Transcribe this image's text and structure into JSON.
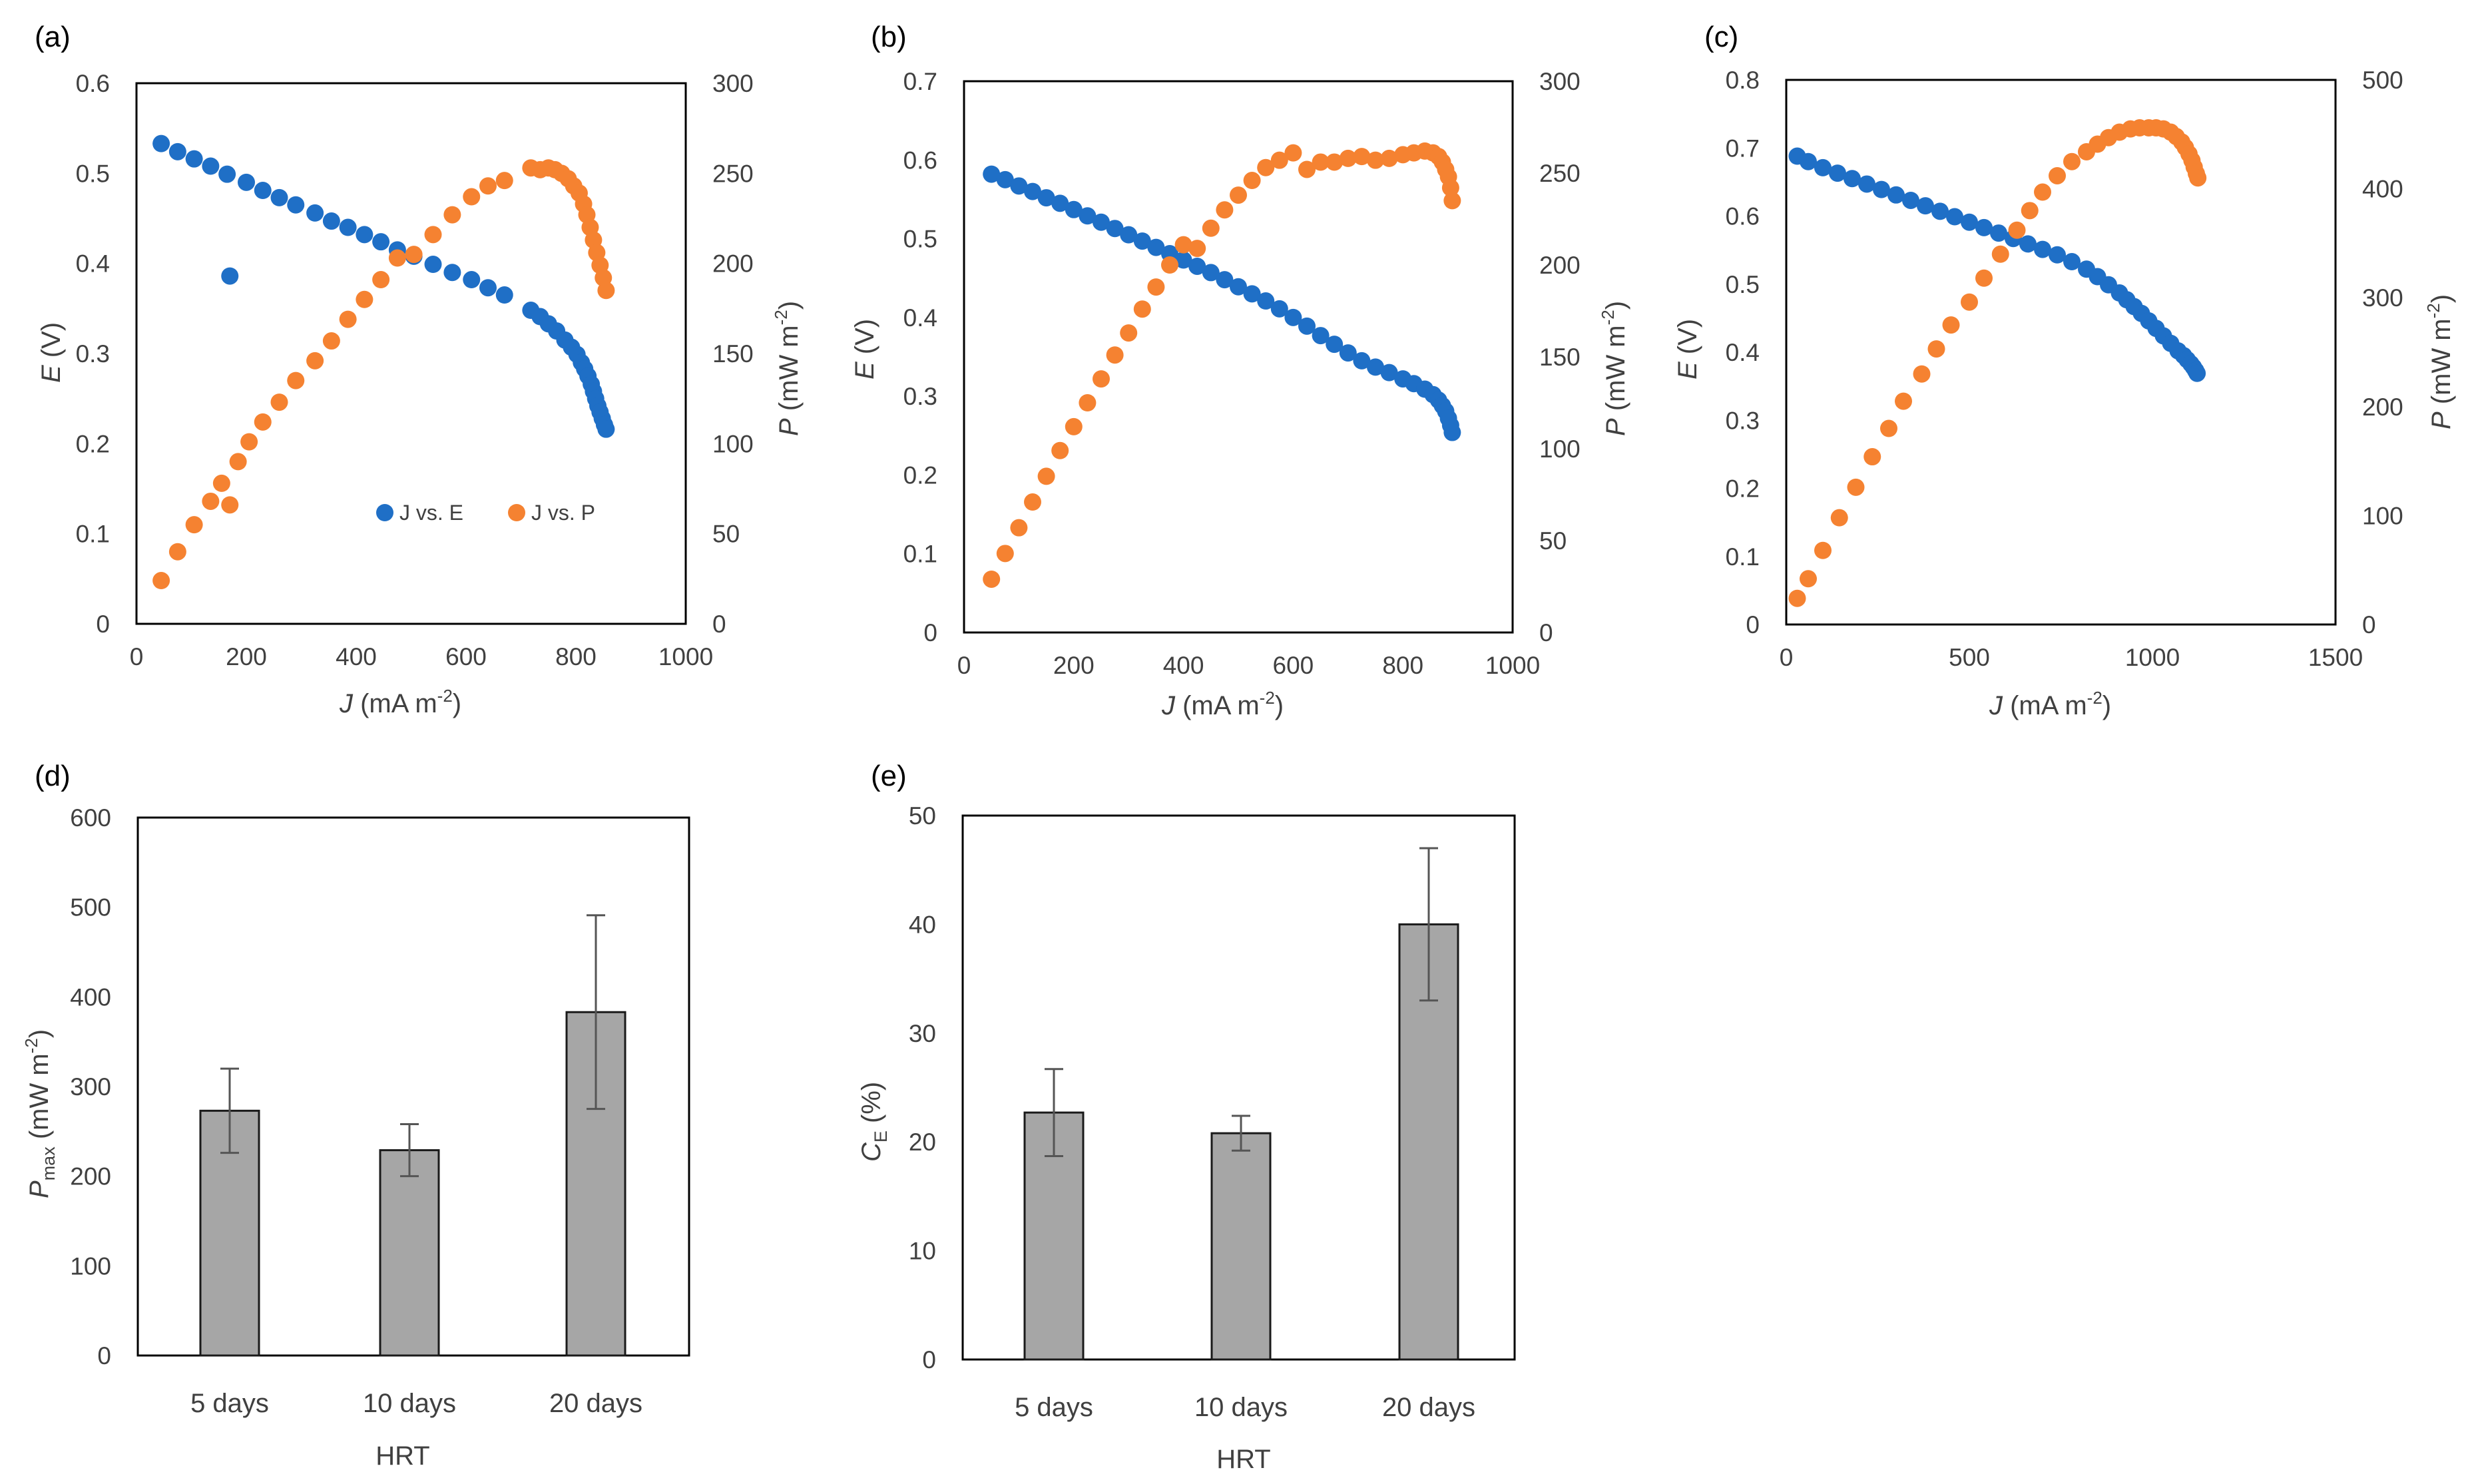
{
  "colors": {
    "series_e": "#1f6fc6",
    "series_p": "#f58231",
    "bar_fill": "#a6a6a6",
    "bar_stroke": "#1a1a1a",
    "error_bar": "#555555",
    "axis": "#000000",
    "text": "#404040"
  },
  "chart_data": [
    {
      "id": "a",
      "type": "scatter",
      "panel_label": "(a)",
      "xlabel_italic": "J",
      "xlabel_rest": " (mA m",
      "xlabel_sup": "-2",
      "xlabel_end": ")",
      "ylabel_italic": "E",
      "ylabel_rest": " (V)",
      "y2label_italic": "P",
      "y2label_rest": " (mW m",
      "y2label_sup": "-2",
      "y2label_end": ")",
      "xlim": [
        0,
        1000
      ],
      "ylim": [
        0,
        0.6
      ],
      "y2lim": [
        0,
        300
      ],
      "xticks": [
        "0",
        "200",
        "400",
        "600",
        "800",
        "1000"
      ],
      "yticks": [
        "0",
        "0.1",
        "0.2",
        "0.3",
        "0.4",
        "0.5",
        "0.6"
      ],
      "y2ticks": [
        "0",
        "50",
        "100",
        "150",
        "200",
        "250",
        "300"
      ],
      "legend": {
        "position": "bottom-right",
        "entries": [
          "J vs. E",
          "J vs. P"
        ]
      },
      "series": [
        {
          "name": "J vs. E",
          "axis": "left",
          "x": [
            45,
            75,
            105,
            135,
            165,
            200,
            230,
            260,
            290,
            325,
            355,
            385,
            415,
            445,
            475,
            505,
            540,
            575,
            610,
            640,
            670,
            718,
            735,
            750,
            765,
            780,
            792,
            802,
            810,
            816,
            822,
            828,
            832,
            836,
            840,
            844,
            848,
            852,
            855
          ],
          "y": [
            0.533,
            0.524,
            0.516,
            0.508,
            0.499,
            0.49,
            0.481,
            0.473,
            0.465,
            0.456,
            0.447,
            0.44,
            0.432,
            0.424,
            0.415,
            0.408,
            0.399,
            0.39,
            0.382,
            0.373,
            0.365,
            0.348,
            0.341,
            0.333,
            0.325,
            0.315,
            0.307,
            0.299,
            0.29,
            0.283,
            0.275,
            0.266,
            0.258,
            0.25,
            0.242,
            0.235,
            0.228,
            0.221,
            0.216
          ]
        },
        {
          "name": "J vs. E outlier",
          "axis": "left",
          "x": [
            170
          ],
          "y": [
            0.386
          ]
        },
        {
          "name": "J vs. P",
          "axis": "right",
          "x": [
            45,
            75,
            105,
            135,
            155,
            170,
            185,
            205,
            230,
            260,
            290,
            325,
            355,
            385,
            415,
            445,
            475,
            505,
            540,
            575,
            610,
            640,
            670,
            718,
            735,
            750,
            762,
            774,
            786,
            796,
            806,
            814,
            820,
            826,
            832,
            838,
            844,
            850,
            855
          ],
          "y": [
            24,
            40,
            55,
            68,
            78,
            66,
            90,
            101,
            112,
            123,
            135,
            146,
            157,
            169,
            180,
            191,
            203,
            205,
            216,
            227,
            237,
            243,
            246,
            253,
            252,
            253,
            252,
            250,
            247,
            243,
            239,
            233,
            227,
            220,
            213,
            206,
            199,
            192,
            185
          ]
        }
      ]
    },
    {
      "id": "b",
      "type": "scatter",
      "panel_label": "(b)",
      "xlabel_italic": "J",
      "xlabel_rest": " (mA m",
      "xlabel_sup": "-2",
      "xlabel_end": ")",
      "ylabel_italic": "E",
      "ylabel_rest": " (V)",
      "y2label_italic": "P",
      "y2label_rest": " (mW m",
      "y2label_sup": "-2",
      "y2label_end": ")",
      "xlim": [
        0,
        1000
      ],
      "ylim": [
        0,
        0.7
      ],
      "y2lim": [
        0,
        300
      ],
      "xticks": [
        "0",
        "200",
        "400",
        "600",
        "800",
        "1000"
      ],
      "yticks": [
        "0",
        "0.1",
        "0.2",
        "0.3",
        "0.4",
        "0.5",
        "0.6",
        "0.7"
      ],
      "y2ticks": [
        "0",
        "50",
        "100",
        "150",
        "200",
        "250",
        "300"
      ],
      "series": [
        {
          "name": "J vs. E",
          "axis": "left",
          "x": [
            50,
            75,
            100,
            125,
            150,
            175,
            200,
            225,
            250,
            275,
            300,
            325,
            350,
            375,
            400,
            425,
            450,
            475,
            500,
            525,
            550,
            575,
            600,
            625,
            650,
            675,
            700,
            725,
            750,
            775,
            800,
            820,
            840,
            855,
            865,
            872,
            878,
            883,
            887,
            890
          ],
          "y": [
            0.582,
            0.575,
            0.567,
            0.56,
            0.552,
            0.545,
            0.537,
            0.529,
            0.521,
            0.513,
            0.505,
            0.497,
            0.489,
            0.481,
            0.473,
            0.465,
            0.457,
            0.448,
            0.439,
            0.43,
            0.421,
            0.411,
            0.4,
            0.389,
            0.377,
            0.366,
            0.355,
            0.345,
            0.337,
            0.33,
            0.322,
            0.316,
            0.309,
            0.302,
            0.295,
            0.288,
            0.281,
            0.272,
            0.263,
            0.254
          ]
        },
        {
          "name": "J vs. P",
          "axis": "right",
          "x": [
            50,
            75,
            100,
            125,
            150,
            175,
            200,
            225,
            250,
            275,
            300,
            325,
            350,
            375,
            400,
            425,
            450,
            475,
            500,
            525,
            550,
            575,
            600,
            625,
            650,
            675,
            700,
            725,
            750,
            775,
            800,
            820,
            840,
            855,
            865,
            872,
            878,
            883,
            887,
            890
          ],
          "y": [
            29,
            43,
            57,
            71,
            85,
            99,
            112,
            125,
            138,
            151,
            163,
            176,
            188,
            200,
            211,
            209,
            220,
            230,
            238,
            246,
            253,
            257,
            261,
            252,
            256,
            256,
            258,
            259,
            257,
            258,
            260,
            261,
            262,
            261,
            259,
            256,
            252,
            248,
            242,
            235
          ]
        }
      ]
    },
    {
      "id": "c",
      "type": "scatter",
      "panel_label": "(c)",
      "xlabel_italic": "J",
      "xlabel_rest": " (mA m",
      "xlabel_sup": "-2",
      "xlabel_end": ")",
      "ylabel_italic": "E",
      "ylabel_rest": " (V)",
      "y2label_italic": "P",
      "y2label_rest": " (mW m",
      "y2label_sup": "-2",
      "y2label_end": ")",
      "xlim": [
        0,
        1500
      ],
      "ylim": [
        0,
        0.8
      ],
      "y2lim": [
        0,
        500
      ],
      "xticks": [
        "0",
        "500",
        "1000",
        "1500"
      ],
      "yticks": [
        "0",
        "0.1",
        "0.2",
        "0.3",
        "0.4",
        "0.5",
        "0.6",
        "0.7",
        "0.8"
      ],
      "y2ticks": [
        "0",
        "100",
        "200",
        "300",
        "400",
        "500"
      ],
      "series": [
        {
          "name": "J vs. E",
          "axis": "left",
          "x": [
            30,
            60,
            100,
            140,
            180,
            220,
            260,
            300,
            340,
            380,
            420,
            460,
            500,
            540,
            580,
            620,
            660,
            700,
            740,
            780,
            820,
            850,
            880,
            910,
            930,
            950,
            970,
            990,
            1010,
            1030,
            1050,
            1070,
            1085,
            1095,
            1105,
            1112,
            1118,
            1122
          ],
          "y": [
            0.688,
            0.68,
            0.671,
            0.663,
            0.655,
            0.647,
            0.639,
            0.631,
            0.623,
            0.615,
            0.607,
            0.599,
            0.591,
            0.583,
            0.575,
            0.567,
            0.559,
            0.551,
            0.543,
            0.533,
            0.522,
            0.511,
            0.499,
            0.487,
            0.477,
            0.467,
            0.457,
            0.446,
            0.435,
            0.424,
            0.413,
            0.402,
            0.395,
            0.389,
            0.383,
            0.378,
            0.373,
            0.369
          ]
        },
        {
          "name": "J vs. P",
          "axis": "right",
          "x": [
            30,
            60,
            100,
            145,
            190,
            235,
            280,
            320,
            370,
            410,
            450,
            500,
            540,
            585,
            630,
            665,
            700,
            740,
            780,
            820,
            850,
            880,
            910,
            940,
            965,
            990,
            1010,
            1030,
            1050,
            1065,
            1080,
            1090,
            1100,
            1108,
            1114,
            1120,
            1124
          ],
          "y": [
            24,
            42,
            68,
            98,
            126,
            154,
            180,
            205,
            230,
            253,
            275,
            296,
            318,
            340,
            362,
            380,
            397,
            412,
            425,
            434,
            441,
            447,
            452,
            455,
            456,
            456,
            456,
            455,
            452,
            448,
            443,
            438,
            432,
            426,
            420,
            414,
            410
          ]
        }
      ]
    },
    {
      "id": "d",
      "type": "bar",
      "panel_label": "(d)",
      "xlabel": "HRT",
      "ylabel_main": "P",
      "ylabel_sub": "max",
      "ylabel_rest": " (mW m",
      "ylabel_sup": "-2",
      "ylabel_end": ")",
      "ylim": [
        0,
        600
      ],
      "yticks": [
        "0",
        "100",
        "200",
        "300",
        "400",
        "500",
        "600"
      ],
      "categories": [
        "5 days",
        "10 days",
        "20 days"
      ],
      "values": [
        273,
        229,
        383
      ],
      "errors": [
        47,
        29,
        108
      ]
    },
    {
      "id": "e",
      "type": "bar",
      "panel_label": "(e)",
      "xlabel": "HRT",
      "ylabel_main": "C",
      "ylabel_sub": "E",
      "ylabel_rest": " (%)",
      "ylim": [
        0,
        50
      ],
      "yticks": [
        "0",
        "10",
        "20",
        "30",
        "40",
        "50"
      ],
      "categories": [
        "5 days",
        "10 days",
        "20 days"
      ],
      "values": [
        22.7,
        20.8,
        40.0
      ],
      "errors": [
        4.0,
        1.6,
        7.0
      ]
    }
  ]
}
